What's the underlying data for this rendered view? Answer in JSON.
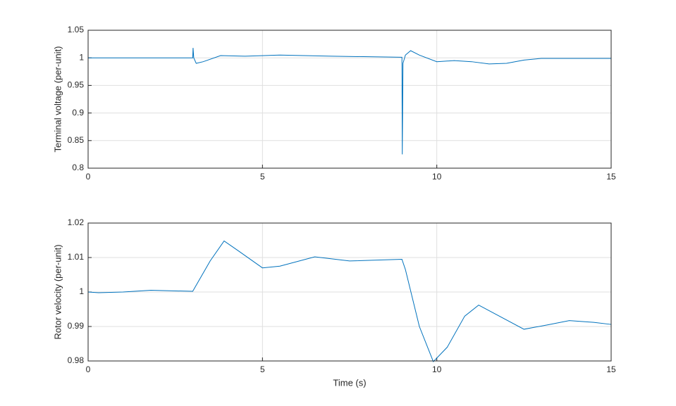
{
  "chart_data": [
    {
      "type": "line",
      "ylabel": "Terminal voltage (per-unit)",
      "x": [
        0,
        1,
        2,
        3.0,
        3.01,
        3.03,
        3.1,
        3.3,
        3.8,
        4.5,
        5.5,
        7,
        9.0,
        9.01,
        9.03,
        9.1,
        9.25,
        9.5,
        10,
        10.5,
        11,
        11.5,
        12,
        12.5,
        13,
        14,
        15
      ],
      "series": [
        {
          "color": "#0072bd",
          "values": [
            1.0,
            1.0,
            1.0,
            1.0,
            1.018,
            1.0,
            0.99,
            0.993,
            1.004,
            1.003,
            1.005,
            1.003,
            1.001,
            0.825,
            0.99,
            1.005,
            1.013,
            1.005,
            0.993,
            0.995,
            0.993,
            0.989,
            0.99,
            0.996,
            0.999,
            0.999,
            0.999
          ]
        }
      ],
      "xlim": [
        0,
        15
      ],
      "xticks": [
        0,
        5,
        10,
        15
      ],
      "ylim": [
        0.8,
        1.05
      ],
      "yticks": [
        0.8,
        0.85,
        0.9,
        0.95,
        1,
        1.05
      ],
      "grid": true
    },
    {
      "type": "line",
      "ylabel": "Rotor velocity (per-unit)",
      "xlabel": "Time (s)",
      "x": [
        0,
        0.3,
        1,
        1.8,
        3.0,
        3.5,
        3.9,
        4.3,
        5,
        5.5,
        6.5,
        7.5,
        9,
        9.1,
        9.5,
        9.9,
        10.3,
        10.8,
        11.2,
        11.7,
        12.5,
        13.2,
        13.8,
        14.5,
        15
      ],
      "series": [
        {
          "color": "#0072bd",
          "values": [
            1.0,
            0.9998,
            1.0,
            1.0005,
            1.0002,
            1.009,
            1.0148,
            1.012,
            1.007,
            1.0075,
            1.0102,
            1.009,
            1.0095,
            1.0065,
            0.99,
            0.9798,
            0.984,
            0.993,
            0.9962,
            0.9935,
            0.9892,
            0.9905,
            0.9917,
            0.9912,
            0.9906
          ]
        }
      ],
      "xlim": [
        0,
        15
      ],
      "xticks": [
        0,
        5,
        10,
        15
      ],
      "ylim": [
        0.98,
        1.02
      ],
      "yticks": [
        0.98,
        0.99,
        1,
        1.01,
        1.02
      ],
      "grid": true
    }
  ]
}
